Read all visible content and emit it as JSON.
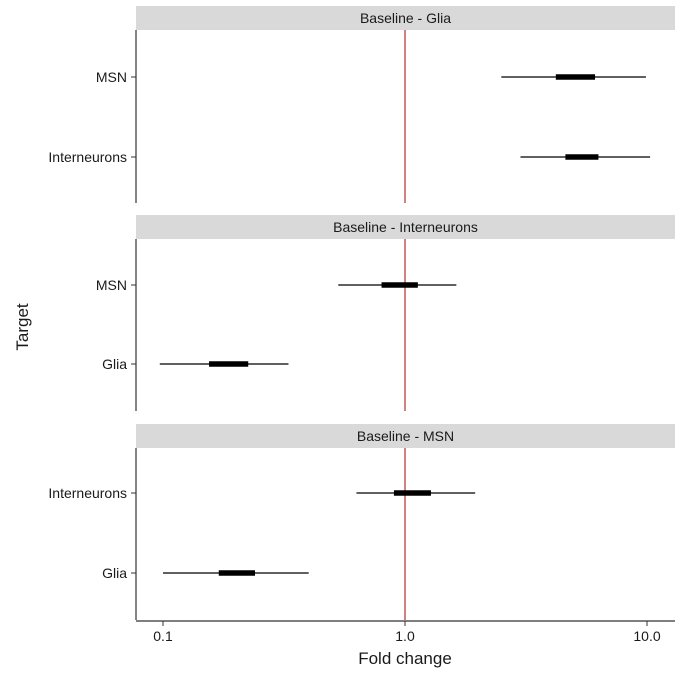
{
  "chart_data": {
    "type": "forest",
    "xlabel": "Fold change",
    "ylabel": "Target",
    "x_scale": "log10",
    "xlim": [
      0.078,
      13.5
    ],
    "x_ticks": [
      {
        "value": 0.1,
        "label": "0.1"
      },
      {
        "value": 1.0,
        "label": "1.0"
      },
      {
        "value": 10.0,
        "label": "10.0"
      }
    ],
    "reference_line": {
      "value": 1.0,
      "color": "#b5403a"
    },
    "grid": false,
    "panels": [
      {
        "title": "Baseline - Glia",
        "rows": [
          {
            "label": "MSN",
            "inner": [
              4.2,
              6.1
            ],
            "outer": [
              2.5,
              9.9
            ]
          },
          {
            "label": "Interneurons",
            "inner": [
              4.6,
              6.3
            ],
            "outer": [
              3.0,
              10.3
            ]
          }
        ]
      },
      {
        "title": "Baseline - Interneurons",
        "rows": [
          {
            "label": "MSN",
            "inner": [
              0.8,
              1.13
            ],
            "outer": [
              0.53,
              1.63
            ]
          },
          {
            "label": "Glia",
            "inner": [
              0.155,
              0.225
            ],
            "outer": [
              0.097,
              0.33
            ]
          }
        ]
      },
      {
        "title": "Baseline - MSN",
        "rows": [
          {
            "label": "Interneurons",
            "inner": [
              0.9,
              1.28
            ],
            "outer": [
              0.63,
              1.95
            ]
          },
          {
            "label": "Glia",
            "inner": [
              0.17,
              0.24
            ],
            "outer": [
              0.1,
              0.4
            ]
          }
        ]
      }
    ]
  }
}
